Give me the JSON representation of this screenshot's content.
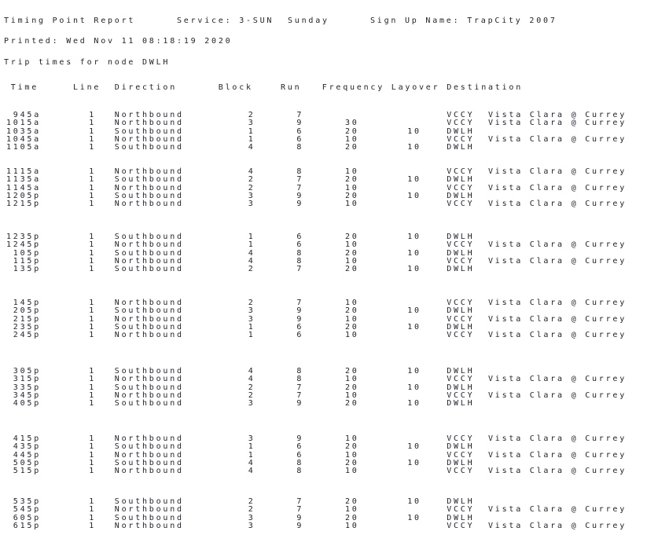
{
  "report": {
    "title": "Timing Point Report",
    "service": "Service: 3-SUN",
    "day": "Sunday",
    "sign_up": "Sign Up Name: TrapCity 2007",
    "printed": "Printed: Wed Nov 11 08:18:19 2020",
    "subtitle": "Trip times for node DWLH"
  },
  "table": {
    "columns": [
      "Time",
      "Line",
      "Direction",
      "Block",
      "Run",
      "Frequency",
      "Layover",
      "Destination"
    ],
    "groups": [
      [
        [
          "945a",
          "1",
          "Northbound",
          "2",
          "7",
          "",
          "",
          "VCCY",
          "Vista Clara @ Currey"
        ],
        [
          "1015a",
          "1",
          "Northbound",
          "3",
          "9",
          "30",
          "",
          "VCCY",
          "Vista Clara @ Currey"
        ],
        [
          "1035a",
          "1",
          "Southbound",
          "1",
          "6",
          "20",
          "10",
          "DWLH",
          ""
        ],
        [
          "1045a",
          "1",
          "Northbound",
          "1",
          "6",
          "10",
          "",
          "VCCY",
          "Vista Clara @ Currey"
        ],
        [
          "1105a",
          "1",
          "Southbound",
          "4",
          "8",
          "20",
          "10",
          "DWLH",
          ""
        ]
      ],
      [
        [
          "1115a",
          "1",
          "Northbound",
          "4",
          "8",
          "10",
          "",
          "VCCY",
          "Vista Clara @ Currey"
        ],
        [
          "1135a",
          "1",
          "Southbound",
          "2",
          "7",
          "20",
          "10",
          "DWLH",
          ""
        ],
        [
          "1145a",
          "1",
          "Northbound",
          "2",
          "7",
          "10",
          "",
          "VCCY",
          "Vista Clara @ Currey"
        ],
        [
          "1205p",
          "1",
          "Southbound",
          "3",
          "9",
          "20",
          "10",
          "DWLH",
          ""
        ],
        [
          "1215p",
          "1",
          "Northbound",
          "3",
          "9",
          "10",
          "",
          "VCCY",
          "Vista Clara @ Currey"
        ]
      ],
      [
        [
          "1235p",
          "1",
          "Southbound",
          "1",
          "6",
          "20",
          "10",
          "DWLH",
          ""
        ],
        [
          "1245p",
          "1",
          "Northbound",
          "1",
          "6",
          "10",
          "",
          "VCCY",
          "Vista Clara @ Currey"
        ],
        [
          "105p",
          "1",
          "Southbound",
          "4",
          "8",
          "20",
          "10",
          "DWLH",
          ""
        ],
        [
          "115p",
          "1",
          "Northbound",
          "4",
          "8",
          "10",
          "",
          "VCCY",
          "Vista Clara @ Currey"
        ],
        [
          "135p",
          "1",
          "Southbound",
          "2",
          "7",
          "20",
          "10",
          "DWLH",
          ""
        ]
      ],
      [
        [
          "145p",
          "1",
          "Northbound",
          "2",
          "7",
          "10",
          "",
          "VCCY",
          "Vista Clara @ Currey"
        ],
        [
          "205p",
          "1",
          "Southbound",
          "3",
          "9",
          "20",
          "10",
          "DWLH",
          ""
        ],
        [
          "215p",
          "1",
          "Northbound",
          "3",
          "9",
          "10",
          "",
          "VCCY",
          "Vista Clara @ Currey"
        ],
        [
          "235p",
          "1",
          "Southbound",
          "1",
          "6",
          "20",
          "10",
          "DWLH",
          ""
        ],
        [
          "245p",
          "1",
          "Northbound",
          "1",
          "6",
          "10",
          "",
          "VCCY",
          "Vista Clara @ Currey"
        ]
      ],
      [
        [
          "305p",
          "1",
          "Southbound",
          "4",
          "8",
          "20",
          "10",
          "DWLH",
          ""
        ],
        [
          "315p",
          "1",
          "Northbound",
          "4",
          "8",
          "10",
          "",
          "VCCY",
          "Vista Clara @ Currey"
        ],
        [
          "335p",
          "1",
          "Southbound",
          "2",
          "7",
          "20",
          "10",
          "DWLH",
          ""
        ],
        [
          "345p",
          "1",
          "Northbound",
          "2",
          "7",
          "10",
          "",
          "VCCY",
          "Vista Clara @ Currey"
        ],
        [
          "405p",
          "1",
          "Southbound",
          "3",
          "9",
          "20",
          "10",
          "DWLH",
          ""
        ]
      ],
      [
        [
          "415p",
          "1",
          "Northbound",
          "3",
          "9",
          "10",
          "",
          "VCCY",
          "Vista Clara @ Currey"
        ],
        [
          "435p",
          "1",
          "Southbound",
          "1",
          "6",
          "20",
          "10",
          "DWLH",
          ""
        ],
        [
          "445p",
          "1",
          "Northbound",
          "1",
          "6",
          "10",
          "",
          "VCCY",
          "Vista Clara @ Currey"
        ],
        [
          "505p",
          "1",
          "Southbound",
          "4",
          "8",
          "20",
          "10",
          "DWLH",
          ""
        ],
        [
          "515p",
          "1",
          "Northbound",
          "4",
          "8",
          "10",
          "",
          "VCCY",
          "Vista Clara @ Currey"
        ]
      ],
      [
        [
          "535p",
          "1",
          "Southbound",
          "2",
          "7",
          "20",
          "10",
          "DWLH",
          ""
        ],
        [
          "545p",
          "1",
          "Northbound",
          "2",
          "7",
          "10",
          "",
          "VCCY",
          "Vista Clara @ Currey"
        ],
        [
          "605p",
          "1",
          "Southbound",
          "3",
          "9",
          "20",
          "10",
          "DWLH",
          ""
        ],
        [
          "615p",
          "1",
          "Northbound",
          "3",
          "9",
          "10",
          "",
          "VCCY",
          "Vista Clara @ Currey"
        ]
      ]
    ]
  },
  "colors": {
    "text": "#23232d",
    "background": "#ffffff"
  }
}
